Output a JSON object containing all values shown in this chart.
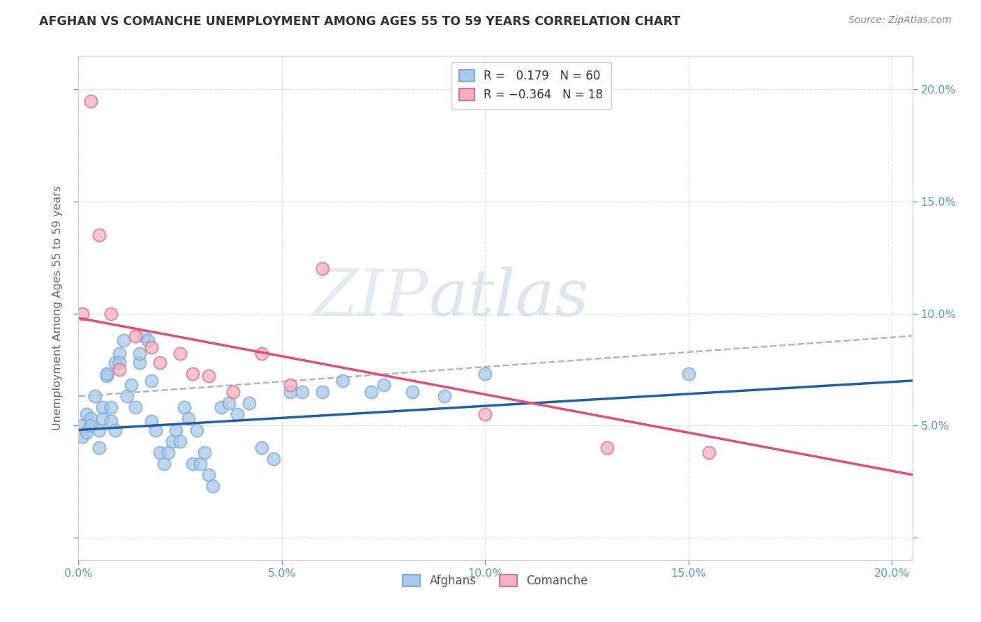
{
  "title": "AFGHAN VS COMANCHE UNEMPLOYMENT AMONG AGES 55 TO 59 YEARS CORRELATION CHART",
  "source": "Source: ZipAtlas.com",
  "ylabel": "Unemployment Among Ages 55 to 59 years",
  "xlim": [
    0.0,
    0.205
  ],
  "ylim": [
    -0.01,
    0.215
  ],
  "xticks": [
    0.0,
    0.05,
    0.1,
    0.15,
    0.2
  ],
  "yticks": [
    0.0,
    0.05,
    0.1,
    0.15,
    0.2
  ],
  "xticklabels": [
    "0.0%",
    "5.0%",
    "10.0%",
    "15.0%",
    "20.0%"
  ],
  "yticklabels_right": [
    "",
    "5.0%",
    "10.0%",
    "15.0%",
    "20.0%"
  ],
  "afghans_color": "#aac8e8",
  "afghans_edge": "#7bafd4",
  "comanche_color": "#f4b0c0",
  "comanche_edge": "#e07090",
  "afghan_line_color": "#2060a8",
  "comanche_line_color": "#e05070",
  "dash_line_color": "#99aacc",
  "R_afghan": 0.179,
  "N_afghan": 60,
  "R_comanche": -0.364,
  "N_comanche": 18,
  "legend_label_1": "Afghans",
  "legend_label_2": "Comanche",
  "tick_color": "#5599cc",
  "axis_label_color": "#666666",
  "title_color": "#333333",
  "source_color": "#888888",
  "grid_color": "#cccccc",
  "watermark": "ZIPatlas",
  "watermark_color": "#ccd8e8",
  "afghans_x": [
    0.001,
    0.001,
    0.002,
    0.002,
    0.003,
    0.003,
    0.004,
    0.005,
    0.005,
    0.006,
    0.006,
    0.007,
    0.007,
    0.008,
    0.008,
    0.009,
    0.009,
    0.01,
    0.01,
    0.011,
    0.012,
    0.013,
    0.014,
    0.015,
    0.015,
    0.016,
    0.017,
    0.018,
    0.018,
    0.019,
    0.02,
    0.021,
    0.022,
    0.023,
    0.024,
    0.025,
    0.026,
    0.027,
    0.028,
    0.029,
    0.03,
    0.031,
    0.032,
    0.033,
    0.035,
    0.037,
    0.039,
    0.042,
    0.045,
    0.048,
    0.052,
    0.055,
    0.06,
    0.065,
    0.072,
    0.075,
    0.082,
    0.09,
    0.1,
    0.15
  ],
  "afghans_y": [
    0.05,
    0.045,
    0.055,
    0.047,
    0.053,
    0.05,
    0.063,
    0.048,
    0.04,
    0.053,
    0.058,
    0.072,
    0.073,
    0.052,
    0.058,
    0.048,
    0.078,
    0.082,
    0.078,
    0.088,
    0.063,
    0.068,
    0.058,
    0.078,
    0.082,
    0.09,
    0.088,
    0.052,
    0.07,
    0.048,
    0.038,
    0.033,
    0.038,
    0.043,
    0.048,
    0.043,
    0.058,
    0.053,
    0.033,
    0.048,
    0.033,
    0.038,
    0.028,
    0.023,
    0.058,
    0.06,
    0.055,
    0.06,
    0.04,
    0.035,
    0.065,
    0.065,
    0.065,
    0.07,
    0.065,
    0.068,
    0.065,
    0.063,
    0.073,
    0.073
  ],
  "comanche_x": [
    0.001,
    0.003,
    0.005,
    0.008,
    0.01,
    0.014,
    0.018,
    0.02,
    0.025,
    0.028,
    0.032,
    0.038,
    0.045,
    0.052,
    0.06,
    0.1,
    0.13,
    0.155
  ],
  "comanche_y": [
    0.1,
    0.195,
    0.135,
    0.1,
    0.075,
    0.09,
    0.085,
    0.078,
    0.082,
    0.073,
    0.072,
    0.065,
    0.082,
    0.068,
    0.12,
    0.055,
    0.04,
    0.038
  ],
  "afghan_line_x0": 0.0,
  "afghan_line_y0": 0.048,
  "afghan_line_x1": 0.205,
  "afghan_line_y1": 0.07,
  "comanche_line_x0": 0.0,
  "comanche_line_y0": 0.098,
  "comanche_line_x1": 0.205,
  "comanche_line_y1": 0.028,
  "dash_line_x0": 0.0,
  "dash_line_y0": 0.063,
  "dash_line_x1": 0.205,
  "dash_line_y1": 0.09
}
